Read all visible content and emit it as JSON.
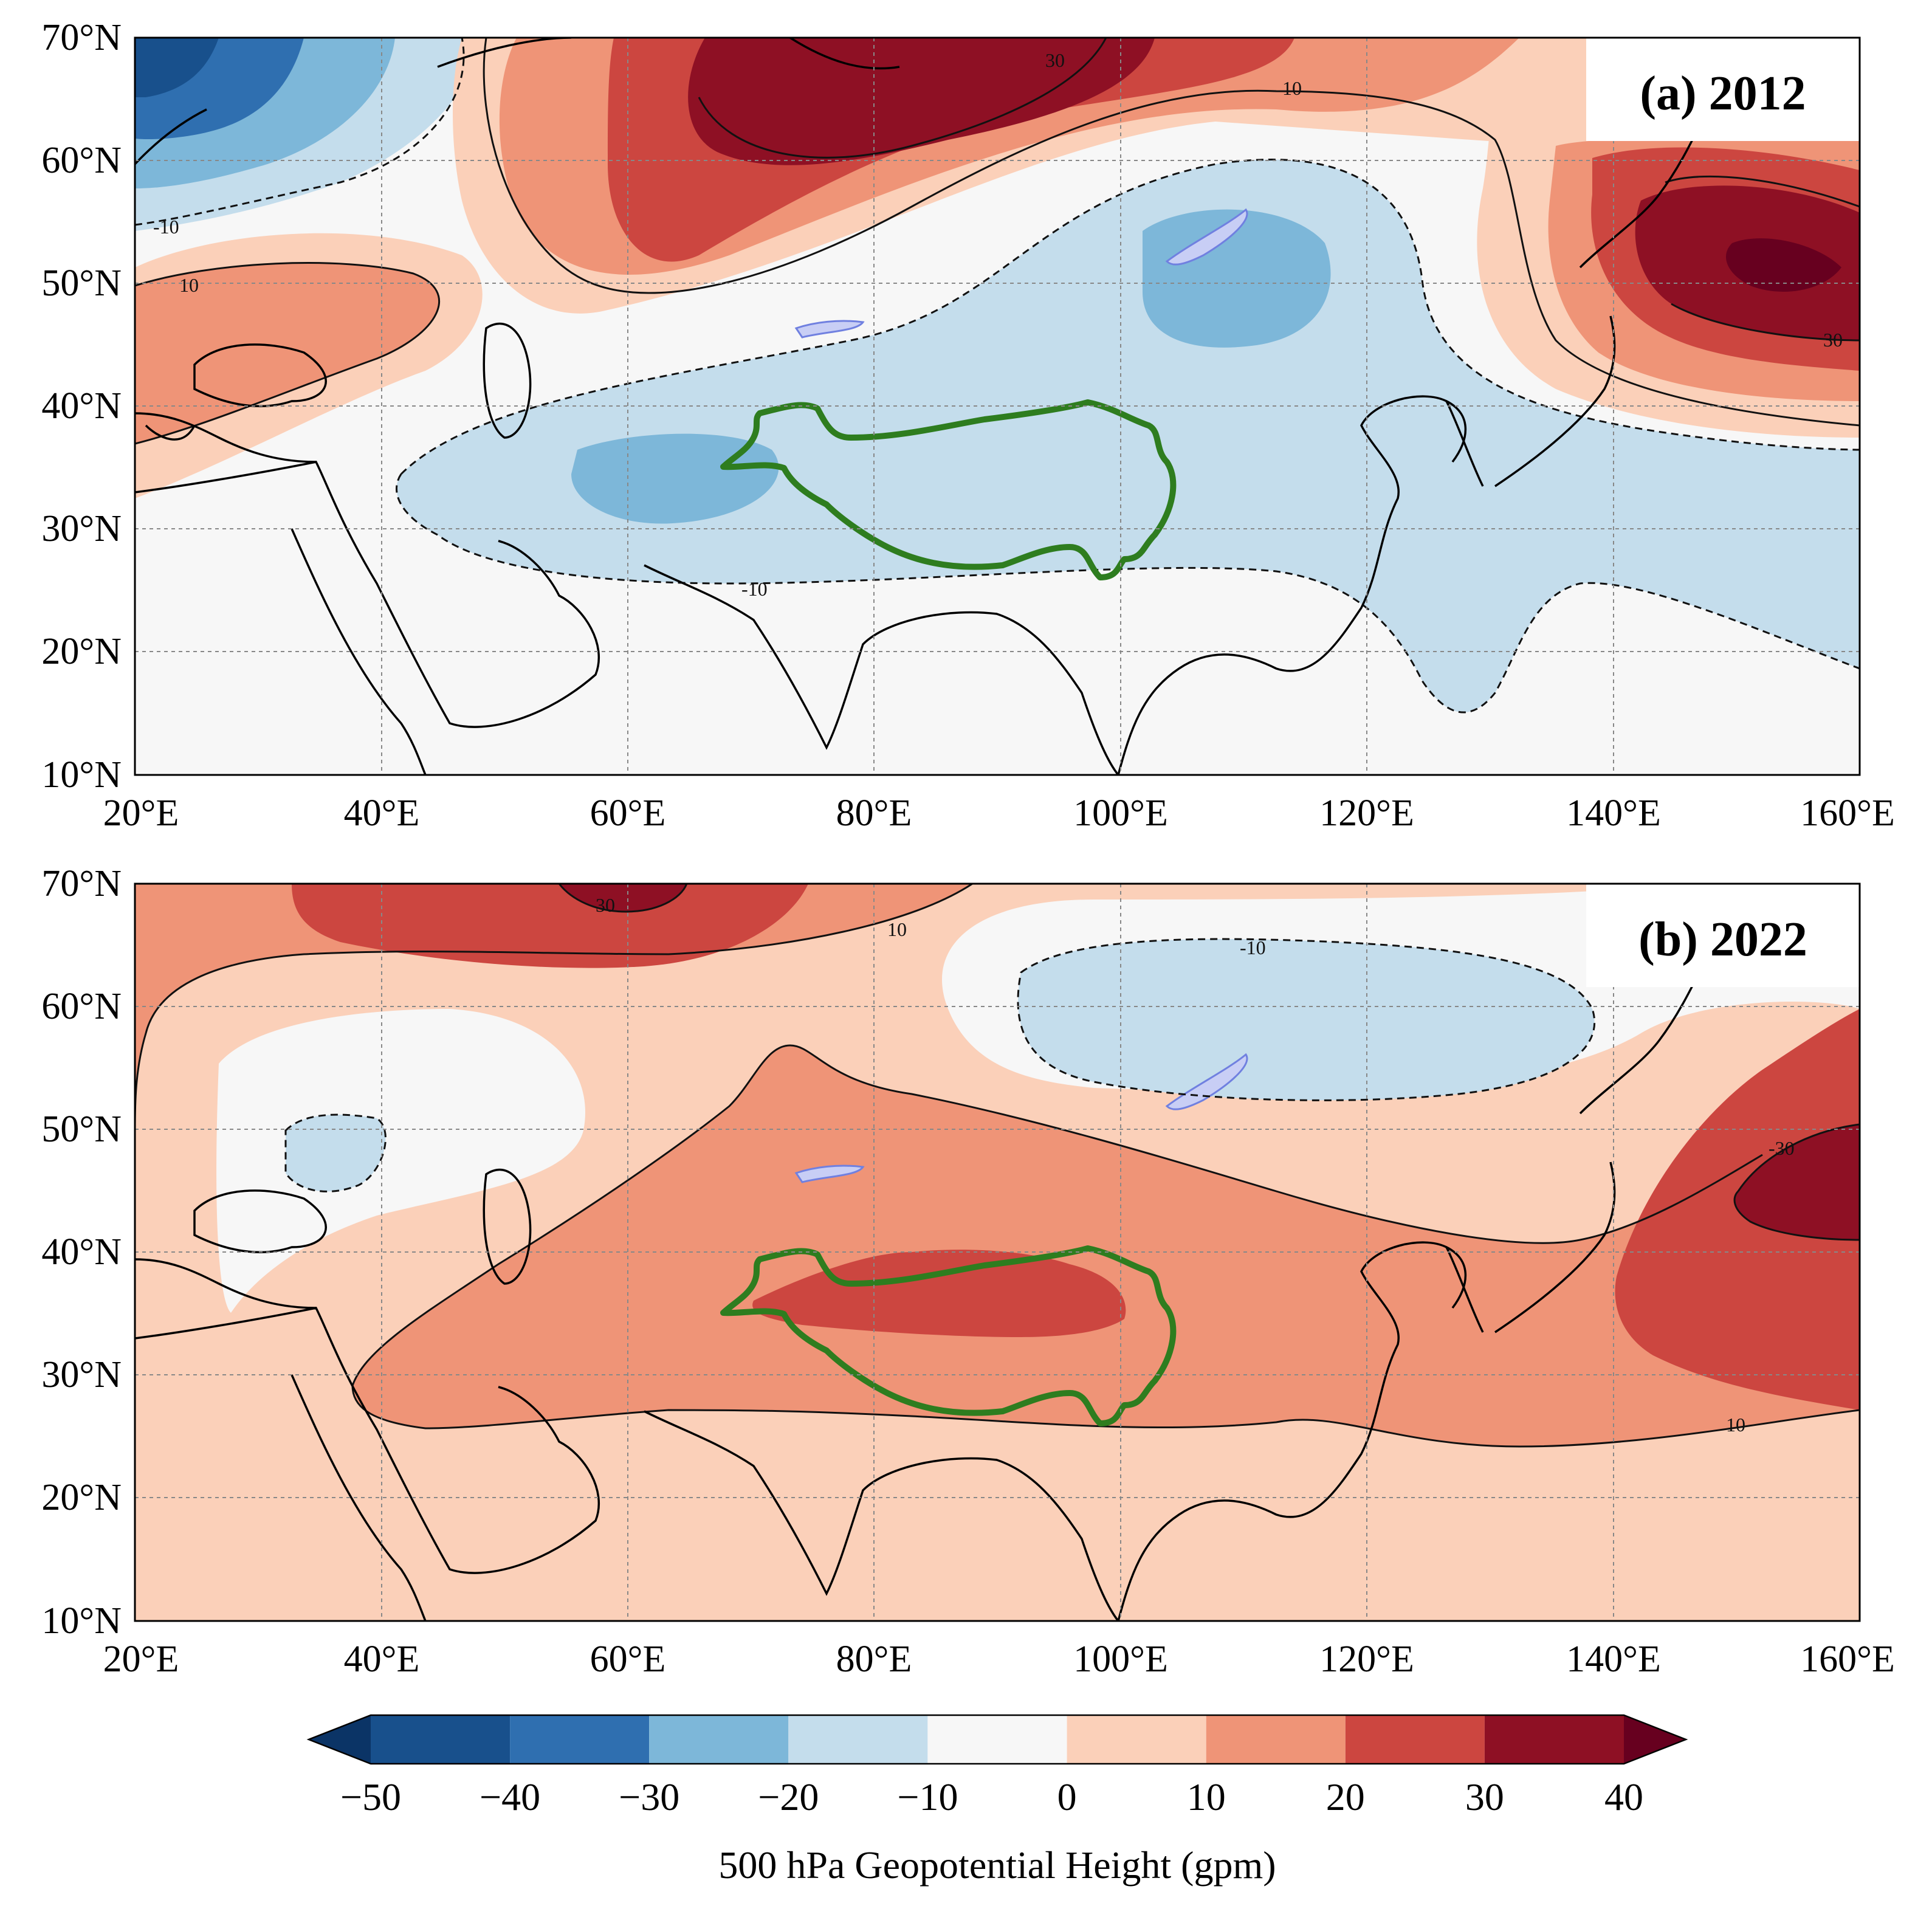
{
  "figure": {
    "panels": [
      {
        "id": "a",
        "title": "(a) 2012",
        "contour_labels": [
          "-30",
          "-10",
          "-10",
          "10",
          "10",
          "10",
          "30",
          "30",
          "-10"
        ]
      },
      {
        "id": "b",
        "title": "(b) 2022",
        "contour_labels": [
          "10",
          "-10",
          "-30",
          "30",
          "10"
        ]
      }
    ],
    "lat_ticks": [
      "70°N",
      "60°N",
      "50°N",
      "40°N",
      "30°N",
      "20°N",
      "10°N"
    ],
    "lon_ticks": [
      "20°E",
      "40°E",
      "60°E",
      "80°E",
      "100°E",
      "120°E",
      "140°E",
      "160°E"
    ],
    "colorbar": {
      "title": "500 hPa Geopotential Height (gpm)",
      "tick_labels": [
        "−50",
        "−40",
        "−30",
        "−20",
        "−10",
        "0",
        "10",
        "20",
        "30",
        "40"
      ],
      "levels": [
        -50,
        -40,
        -30,
        -20,
        -10,
        0,
        10,
        20,
        30,
        40
      ],
      "colors": [
        "#18508c",
        "#2f6fb0",
        "#7db7d9",
        "#c4ddec",
        "#f7f7f7",
        "#fbd0b9",
        "#ef9477",
        "#cc4640",
        "#8e1024"
      ],
      "under_color": "#0b3466",
      "over_color": "#67001f"
    },
    "region_outline_color": "#2e7d1f"
  }
}
